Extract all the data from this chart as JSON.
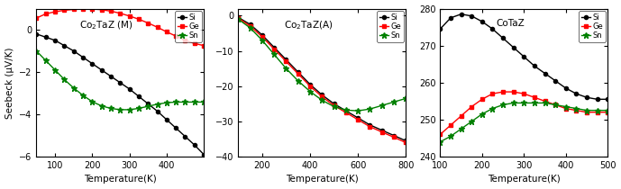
{
  "panel1": {
    "title": "Co$_2$TaZ (M)",
    "xlabel": "Temperature(K)",
    "ylabel": "Seebeck (μV/K)",
    "xlim": [
      50,
      500
    ],
    "ylim": [
      -6,
      1
    ],
    "yticks": [
      -6,
      -4,
      -2,
      0
    ],
    "xticks": [
      100,
      200,
      300,
      400
    ],
    "Si_x": [
      50,
      75,
      100,
      125,
      150,
      175,
      200,
      225,
      250,
      275,
      300,
      325,
      350,
      375,
      400,
      425,
      450,
      475,
      500
    ],
    "Si_y": [
      -0.2,
      -0.35,
      -0.5,
      -0.75,
      -1.0,
      -1.3,
      -1.6,
      -1.9,
      -2.2,
      -2.5,
      -2.8,
      -3.15,
      -3.5,
      -3.85,
      -4.25,
      -4.65,
      -5.05,
      -5.45,
      -5.9
    ],
    "Ge_x": [
      50,
      75,
      100,
      125,
      150,
      175,
      200,
      225,
      250,
      275,
      300,
      325,
      350,
      375,
      400,
      425,
      450,
      475,
      500
    ],
    "Ge_y": [
      0.55,
      0.75,
      0.85,
      0.92,
      0.96,
      0.98,
      0.98,
      0.95,
      0.88,
      0.78,
      0.65,
      0.5,
      0.32,
      0.12,
      -0.1,
      -0.3,
      -0.5,
      -0.65,
      -0.75
    ],
    "Sn_x": [
      50,
      75,
      100,
      125,
      150,
      175,
      200,
      225,
      250,
      275,
      300,
      325,
      350,
      375,
      400,
      425,
      450,
      475,
      500
    ],
    "Sn_y": [
      -1.0,
      -1.45,
      -1.9,
      -2.35,
      -2.75,
      -3.1,
      -3.4,
      -3.6,
      -3.72,
      -3.78,
      -3.78,
      -3.72,
      -3.62,
      -3.52,
      -3.45,
      -3.42,
      -3.42,
      -3.42,
      -3.42
    ]
  },
  "panel2": {
    "title": "Co$_2$TaZ(A)",
    "xlabel": "Temperature(K)",
    "ylabel": "",
    "xlim": [
      100,
      800
    ],
    "ylim": [
      -40,
      2
    ],
    "yticks": [
      -40,
      -30,
      -20,
      -10,
      0
    ],
    "xticks": [
      200,
      400,
      600,
      800
    ],
    "Si_x": [
      100,
      150,
      200,
      250,
      300,
      350,
      400,
      450,
      500,
      550,
      600,
      650,
      700,
      750,
      800
    ],
    "Si_y": [
      -0.5,
      -2.5,
      -5.5,
      -9.0,
      -12.5,
      -16.0,
      -19.5,
      -22.5,
      -25.0,
      -27.0,
      -29.0,
      -31.0,
      -32.5,
      -34.0,
      -35.5
    ],
    "Ge_x": [
      100,
      150,
      200,
      250,
      300,
      350,
      400,
      450,
      500,
      550,
      600,
      650,
      700,
      750,
      800
    ],
    "Ge_y": [
      -0.7,
      -3.0,
      -6.0,
      -9.5,
      -13.0,
      -16.5,
      -20.0,
      -23.0,
      -25.5,
      -27.5,
      -29.5,
      -31.5,
      -33.0,
      -34.5,
      -36.0
    ],
    "Sn_x": [
      100,
      150,
      200,
      250,
      300,
      350,
      400,
      450,
      500,
      550,
      600,
      650,
      700,
      750,
      800
    ],
    "Sn_y": [
      -1.0,
      -3.5,
      -7.0,
      -11.0,
      -15.0,
      -18.5,
      -21.5,
      -24.0,
      -25.8,
      -26.8,
      -27.0,
      -26.5,
      -25.5,
      -24.5,
      -23.5
    ]
  },
  "panel3": {
    "title": "CoTaZ",
    "xlabel": "Temperature(K)",
    "ylabel": "",
    "xlim": [
      100,
      500
    ],
    "ylim": [
      240,
      280
    ],
    "yticks": [
      240,
      250,
      260,
      270,
      280
    ],
    "xticks": [
      100,
      200,
      300,
      400,
      500
    ],
    "Si_x": [
      100,
      125,
      150,
      175,
      200,
      225,
      250,
      275,
      300,
      325,
      350,
      375,
      400,
      425,
      450,
      475,
      500
    ],
    "Si_y": [
      274.5,
      277.5,
      278.5,
      278.0,
      276.5,
      274.5,
      272.0,
      269.5,
      267.0,
      264.5,
      262.5,
      260.5,
      258.5,
      257.0,
      256.0,
      255.5,
      255.5
    ],
    "Ge_x": [
      100,
      125,
      150,
      175,
      200,
      225,
      250,
      275,
      300,
      325,
      350,
      375,
      400,
      425,
      450,
      475,
      500
    ],
    "Ge_y": [
      246.0,
      248.5,
      251.0,
      253.5,
      255.5,
      257.0,
      257.5,
      257.5,
      257.0,
      256.0,
      255.0,
      254.0,
      253.0,
      252.5,
      252.0,
      252.0,
      252.0
    ],
    "Sn_x": [
      100,
      125,
      150,
      175,
      200,
      225,
      250,
      275,
      300,
      325,
      350,
      375,
      400,
      425,
      450,
      475,
      500
    ],
    "Sn_y": [
      244.0,
      245.5,
      247.5,
      249.5,
      251.5,
      253.0,
      254.0,
      254.5,
      254.5,
      254.5,
      254.5,
      254.0,
      253.5,
      253.0,
      252.5,
      252.5,
      252.5
    ]
  },
  "linewidth": 1.0,
  "markersize_circle": 3.0,
  "markersize_square": 3.0,
  "markersize_star": 4.5
}
